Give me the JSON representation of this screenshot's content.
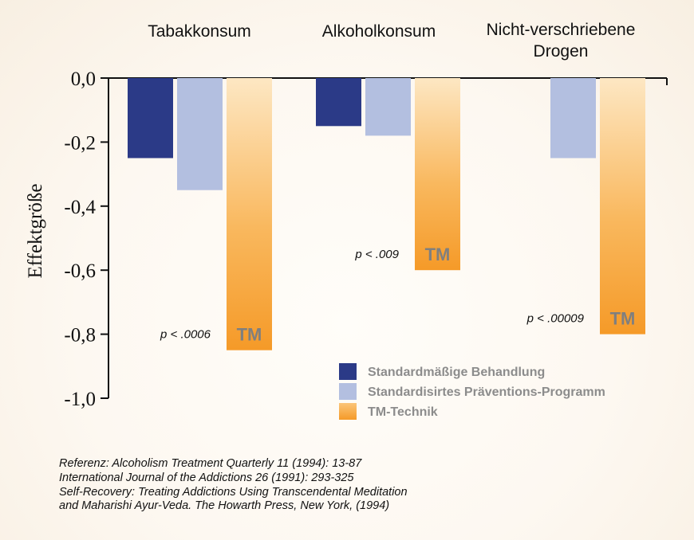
{
  "chart_data": {
    "type": "bar",
    "ylabel": "Effektgröße",
    "ylim": [
      -1.0,
      0.0
    ],
    "yticks": [
      "0,0",
      "-0,2",
      "-0,4",
      "-0,6",
      "-0,8",
      "-1,0"
    ],
    "ytick_values": [
      0.0,
      -0.2,
      -0.4,
      -0.6,
      -0.8,
      -1.0
    ],
    "categories": [
      {
        "lines": [
          "Tabakkonsum"
        ]
      },
      {
        "lines": [
          "Alkoholkonsum"
        ]
      },
      {
        "lines": [
          "Nicht-verschriebene",
          "Drogen"
        ]
      }
    ],
    "series": [
      {
        "name": "Standardmäßige Behandlung",
        "color": "#2b3a87",
        "values": [
          -0.25,
          -0.15,
          null
        ]
      },
      {
        "name": "Standardisirtes Präventions-Programm",
        "color": "#b3bfe0",
        "values": [
          -0.35,
          -0.18,
          -0.25
        ]
      },
      {
        "name": "TM-Technik",
        "color": "#f7a030",
        "values": [
          -0.85,
          -0.6,
          -0.8
        ]
      }
    ],
    "bar_mark": "TM",
    "p_values": [
      "p < .0006",
      "p < .009",
      "p < .00009"
    ],
    "legend_position": "bottom-right",
    "grid": false
  },
  "references": [
    "Referenz: Alcoholism Treatment Quarterly 11 (1994): 13-87",
    "International Journal of the Addictions 26 (1991): 293-325",
    "Self-Recovery: Treating Addictions Using Transcendental Meditation",
    "and Maharishi Ayur-Veda. The Howarth Press, New York, (1994)"
  ]
}
